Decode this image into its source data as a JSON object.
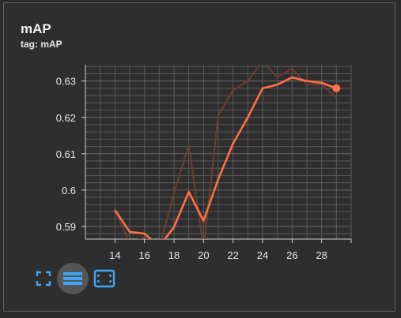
{
  "card": {
    "title": "mAP",
    "tag": "tag: mAP"
  },
  "colors": {
    "smoothed": "#ff7043",
    "raw": "#6b3f33",
    "grid": "#5a5a5a",
    "axis": "#cfcfcf",
    "tick_text": "#e8e8e8",
    "toolbar_icon": "#42a5f5"
  },
  "toolbar": {
    "buttons": [
      {
        "icon": "fullscreen-icon"
      },
      {
        "icon": "list-icon",
        "active": true
      },
      {
        "icon": "fit-domain-icon"
      }
    ]
  },
  "chart_data": {
    "type": "line",
    "title": "mAP",
    "xlabel": "",
    "ylabel": "",
    "xlim": [
      12,
      30
    ],
    "ylim": [
      0.5865,
      0.6345
    ],
    "x_ticks": [
      14,
      16,
      18,
      20,
      22,
      24,
      26,
      28
    ],
    "y_ticks": [
      0.59,
      0.6,
      0.61,
      0.62,
      0.63
    ],
    "y_tick_labels": [
      "0.59",
      "0.6",
      "0.61",
      "0.62",
      "0.63"
    ],
    "grid": true,
    "legend": "none",
    "series": [
      {
        "role": "raw",
        "x": [
          14,
          15,
          16,
          17,
          18,
          19,
          20,
          21,
          22,
          23,
          24,
          25,
          26,
          27,
          28,
          29
        ],
        "y": [
          0.5945,
          0.5855,
          0.587,
          0.584,
          0.599,
          0.6125,
          0.584,
          0.6205,
          0.6275,
          0.63,
          0.6355,
          0.631,
          0.6335,
          0.629,
          0.629,
          0.6255
        ]
      },
      {
        "role": "smoothed",
        "x": [
          14,
          15,
          16,
          17,
          18,
          19,
          20,
          21,
          22,
          23,
          24,
          25,
          26,
          27,
          28,
          29
        ],
        "y": [
          0.5945,
          0.5885,
          0.588,
          0.5845,
          0.5898,
          0.5995,
          0.5915,
          0.603,
          0.6128,
          0.62,
          0.628,
          0.629,
          0.631,
          0.63,
          0.6295,
          0.628
        ]
      }
    ]
  }
}
